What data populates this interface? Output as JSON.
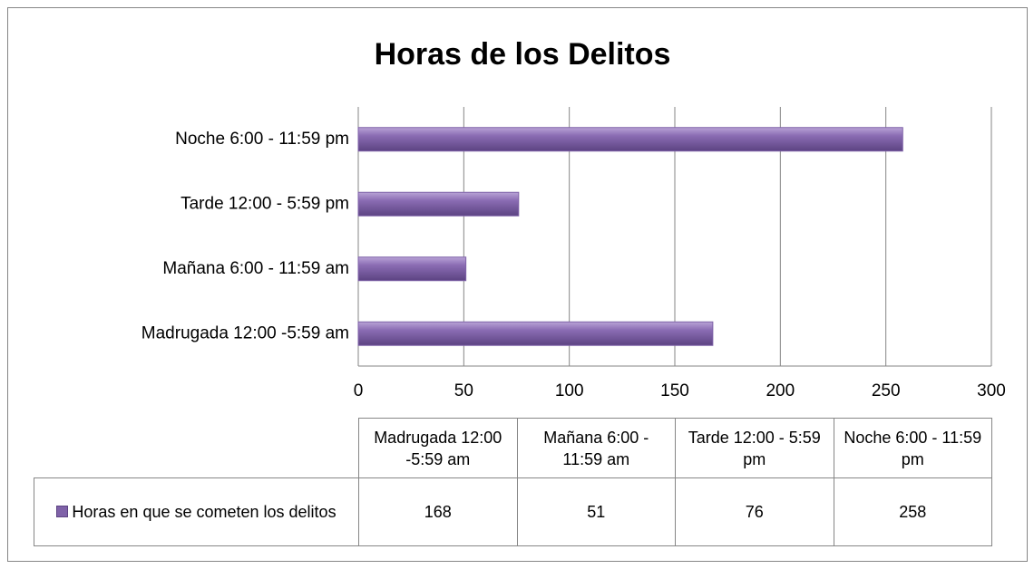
{
  "chart_data": {
    "type": "bar",
    "title": "Horas de los Delitos",
    "categories": [
      "Madrugada 12:00 -5:59 am",
      "Mañana 6:00 - 11:59 am",
      "Tarde 12:00 - 5:59 pm",
      "Noche 6:00 - 11:59 pm"
    ],
    "series": [
      {
        "name": "Horas en que se cometen los delitos",
        "color": "#7f62a8",
        "values": [
          168,
          51,
          76,
          258
        ]
      }
    ],
    "xlim": [
      0,
      300
    ],
    "xticks": [
      0,
      50,
      100,
      150,
      200,
      250,
      300
    ],
    "grid": true,
    "data_table": true
  }
}
